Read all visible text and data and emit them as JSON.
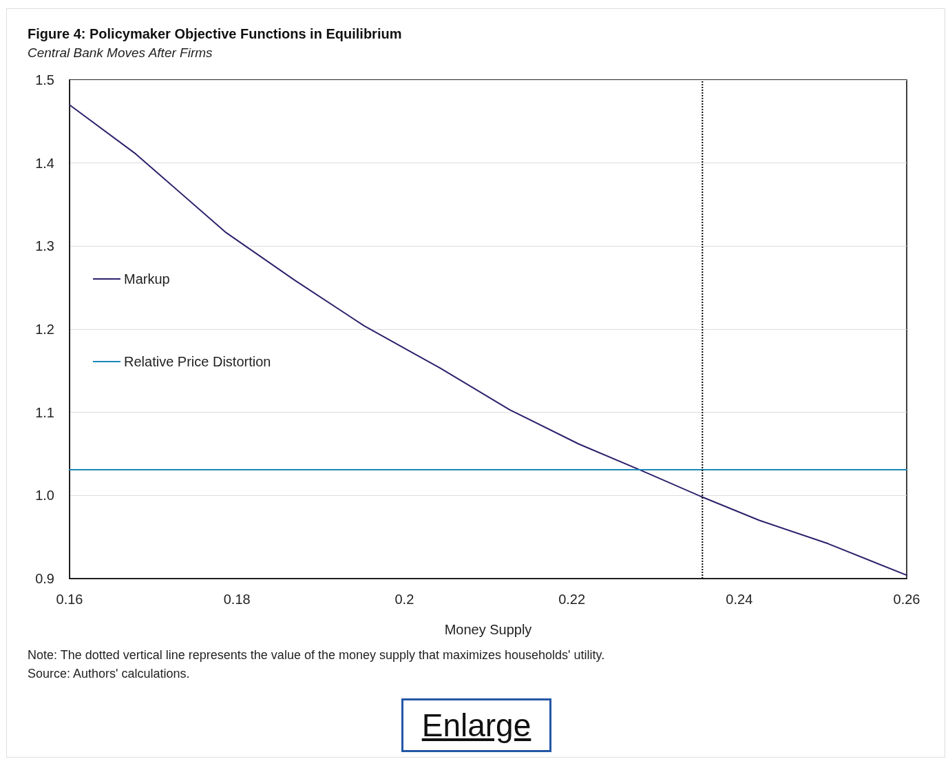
{
  "chart_data": {
    "type": "line",
    "title": "Figure 4: Policymaker Objective Functions in Equilibrium",
    "subtitle": "Central Bank Moves After Firms",
    "xlabel": "Money Supply",
    "series": [
      {
        "name": "Markup",
        "color": "#2e1f6b",
        "x": [
          0.16,
          0.1679,
          0.1786,
          0.1869,
          0.1952,
          0.2043,
          0.2126,
          0.2208,
          0.2283,
          0.2356,
          0.2424,
          0.2506,
          0.26
        ],
        "values": [
          1.47,
          1.411,
          1.317,
          1.259,
          1.204,
          1.153,
          1.103,
          1.062,
          1.03,
          0.998,
          0.97,
          0.942,
          0.904
        ]
      },
      {
        "name": "Relative Price Distortion",
        "color": "#1a87b8",
        "x": [
          0.16,
          0.26
        ],
        "values": [
          1.031,
          1.031
        ]
      }
    ],
    "xlim": [
      0.16,
      0.26
    ],
    "xticks": [
      0.16,
      0.18,
      0.2,
      0.22,
      0.24,
      0.26
    ],
    "ylim": [
      0.9,
      1.5
    ],
    "yticks": [
      {
        "value": 0.9,
        "label": "0.9"
      },
      {
        "value": 1.0,
        "label": "1.0"
      },
      1.1,
      1.2,
      1.3,
      1.4,
      1.5
    ],
    "ref_lines": [
      {
        "axis": "x",
        "value": 0.2356,
        "color": "#000000",
        "line_style": "dotted"
      }
    ],
    "grid": "y",
    "legend": "left",
    "marker": "none",
    "line_style": "solid",
    "annotations": [
      "Note: The dotted vertical line represents the value of the money supply that maximizes households' utility.",
      "Source: Authors' calculations.",
      "Enlarge"
    ]
  }
}
